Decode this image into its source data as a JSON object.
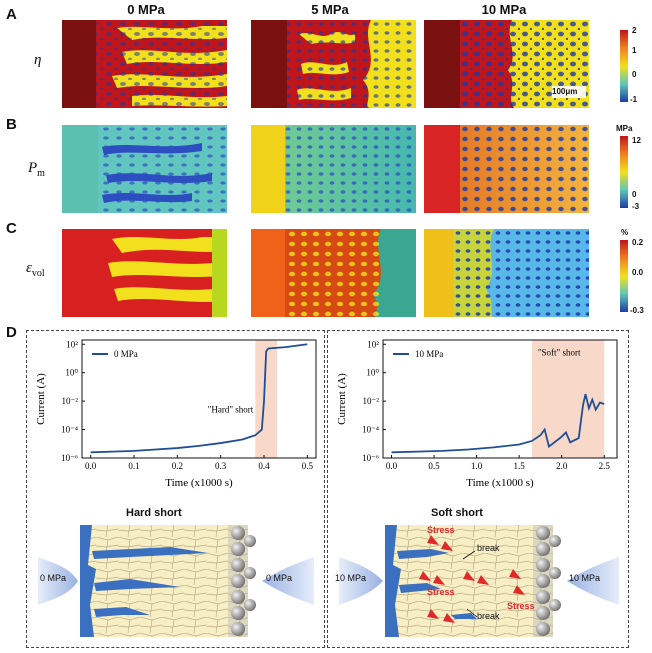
{
  "panel_labels": {
    "a": "A",
    "b": "B",
    "c": "C",
    "d": "D"
  },
  "column_headers": [
    "0 MPa",
    "5 MPa",
    "10 MPa"
  ],
  "rows": {
    "eta": {
      "label": "η",
      "colorbar_ticks": [
        "2",
        "1",
        "0",
        "-1"
      ]
    },
    "pm": {
      "label": "P",
      "sub": "m",
      "unit": "MPa",
      "colorbar_ticks": [
        "12",
        "0",
        "-3"
      ]
    },
    "evol": {
      "label": "ε",
      "sub": "vol",
      "unit": "%",
      "colorbar_ticks": [
        "0.2",
        "0.0",
        "-0.3"
      ]
    }
  },
  "scalebar": "100μm",
  "chart_data": [
    {
      "type": "line",
      "legend": "0 MPa",
      "xlabel": "Time (x1000 s)",
      "ylabel": "Current (A)",
      "x_ticks": [
        "0.0",
        "0.1",
        "0.2",
        "0.3",
        "0.4",
        "0.5"
      ],
      "y_ticks": [
        "10²",
        "10⁰",
        "10⁻²",
        "10⁻⁴",
        "10⁻⁶"
      ],
      "xlim": [
        -0.02,
        0.52
      ],
      "ylim_log10": [
        -6,
        2.3
      ],
      "annotation": "\"Hard\" short",
      "shade": [
        0.38,
        0.43
      ],
      "x": [
        0.0,
        0.05,
        0.1,
        0.15,
        0.2,
        0.25,
        0.3,
        0.35,
        0.38,
        0.395,
        0.4,
        0.405,
        0.41,
        0.45,
        0.5
      ],
      "log10_y": [
        -5.6,
        -5.55,
        -5.5,
        -5.4,
        -5.3,
        -5.15,
        -4.95,
        -4.7,
        -4.4,
        -4.0,
        -2.0,
        1.5,
        1.7,
        1.8,
        2.0
      ]
    },
    {
      "type": "line",
      "legend": "10 MPa",
      "xlabel": "Time (x1000 s)",
      "ylabel": "Current (A)",
      "x_ticks": [
        "0.0",
        "0.5",
        "1.0",
        "1.5",
        "2.0",
        "2.5"
      ],
      "y_ticks": [
        "10²",
        "10⁰",
        "10⁻²",
        "10⁻⁴",
        "10⁻⁶"
      ],
      "xlim": [
        -0.1,
        2.65
      ],
      "ylim_log10": [
        -6,
        2.3
      ],
      "annotation": "\"Soft\" short",
      "shade": [
        1.65,
        2.5
      ],
      "x": [
        0.0,
        0.3,
        0.6,
        0.9,
        1.2,
        1.5,
        1.65,
        1.75,
        1.8,
        1.85,
        2.0,
        2.05,
        2.1,
        2.2,
        2.25,
        2.28,
        2.32,
        2.36,
        2.4,
        2.45,
        2.5
      ],
      "log10_y": [
        -5.6,
        -5.55,
        -5.5,
        -5.4,
        -5.25,
        -5.05,
        -4.8,
        -4.4,
        -4.0,
        -5.2,
        -4.5,
        -4.2,
        -4.9,
        -4.6,
        -2.3,
        -1.5,
        -2.5,
        -1.9,
        -2.6,
        -2.1,
        -2.2
      ]
    }
  ],
  "schematic_hard": {
    "title": "Hard short",
    "left_pressure": "0 MPa",
    "right_pressure": "0 MPa"
  },
  "schematic_soft": {
    "title": "Soft short",
    "left_pressure": "10 MPa",
    "right_pressure": "10 MPa",
    "stress_label": "Stress",
    "break_label": "break"
  },
  "colors": {
    "dark_red": "#8b1414",
    "red": "#c0151a",
    "yellow": "#f2e01c",
    "blue": "#1c3aa8",
    "teal": "#5fc7b8",
    "curve": "#1f4f93",
    "shade": "#f8d8c8",
    "li": "#3b6fc0",
    "grain": "#f7eec4"
  }
}
